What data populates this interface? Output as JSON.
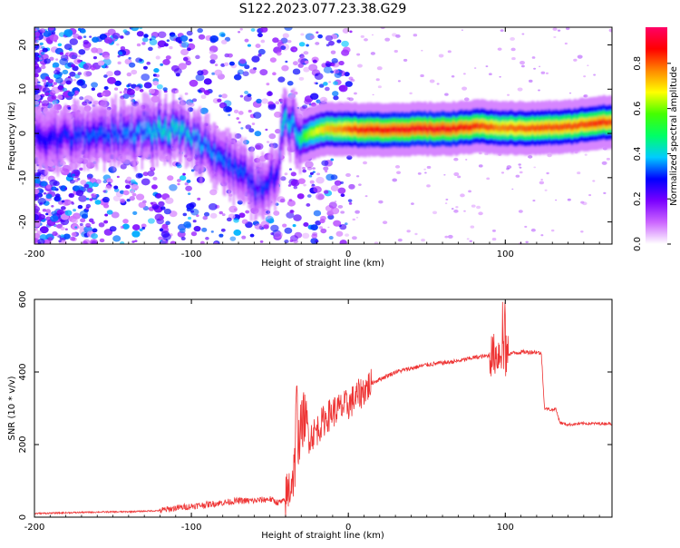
{
  "title": "S122.2023.077.23.38.G29",
  "chart_data": [
    {
      "type": "heatmap",
      "title": "S122.2023.077.23.38.G29",
      "xlabel": "Height of straight line (km)",
      "ylabel": "Frequency (Hz)",
      "xlim": [
        -200,
        168
      ],
      "ylim": [
        -25,
        24
      ],
      "x_ticks": [
        -200,
        -100,
        0,
        100
      ],
      "y_ticks": [
        -20,
        -10,
        0,
        10,
        20
      ],
      "colorbar": {
        "label": "Normalized spectral amplitude",
        "range": [
          0,
          0.96
        ],
        "ticks": [
          "0.0",
          "0.2",
          "0.4",
          "0.6",
          "0.8"
        ],
        "colors": [
          "#ffffff",
          "#cc66ff",
          "#7a00ff",
          "#0000ff",
          "#00ccff",
          "#00ff66",
          "#44ff00",
          "#ffff00",
          "#ff8800",
          "#ff0000",
          "#ff0066"
        ]
      },
      "ridge": {
        "x": [
          -200,
          -190,
          -180,
          -170,
          -160,
          -150,
          -140,
          -130,
          -120,
          -110,
          -100,
          -95,
          -90,
          -85,
          -80,
          -75,
          -70,
          -65,
          -60,
          -55,
          -50,
          -45,
          -42,
          -40,
          -38,
          -35,
          -32,
          -30,
          -28,
          -25,
          -20,
          -15,
          -10,
          -5,
          0,
          10,
          20,
          40,
          60,
          70,
          80,
          85,
          90,
          95,
          100,
          120,
          140,
          150,
          160,
          168
        ],
        "y": [
          -1,
          -1,
          -1,
          -0.5,
          -0.5,
          0,
          0,
          0.5,
          0.5,
          0.5,
          -0.5,
          -2,
          -3,
          -4,
          -6,
          -7,
          -9,
          -10,
          -12,
          -13,
          -11,
          -8,
          3,
          4,
          3,
          2,
          0,
          -1,
          -0.5,
          0,
          0.5,
          1,
          1,
          1,
          1,
          0.8,
          0.8,
          1,
          1,
          1.2,
          1.5,
          1.6,
          1.5,
          1.2,
          1.2,
          1.2,
          1.5,
          2,
          2.5,
          2.5
        ],
        "amplitude": [
          0.3,
          0.3,
          0.32,
          0.35,
          0.35,
          0.36,
          0.38,
          0.4,
          0.45,
          0.45,
          0.42,
          0.4,
          0.38,
          0.38,
          0.36,
          0.35,
          0.35,
          0.34,
          0.34,
          0.34,
          0.32,
          0.3,
          0.45,
          0.45,
          0.42,
          0.4,
          0.45,
          0.55,
          0.6,
          0.65,
          0.7,
          0.75,
          0.78,
          0.8,
          0.85,
          0.9,
          0.9,
          0.92,
          0.92,
          0.9,
          0.88,
          0.85,
          0.85,
          0.8,
          0.82,
          0.85,
          0.85,
          0.85,
          0.88,
          0.85
        ]
      }
    },
    {
      "type": "line",
      "xlabel": "Height of straight line (km)",
      "ylabel": "SNR (10 * v/v)",
      "xlim": [
        -200,
        168
      ],
      "ylim": [
        0,
        600
      ],
      "x_ticks": [
        -200,
        -100,
        0,
        100
      ],
      "y_ticks": [
        0,
        200,
        400,
        600
      ],
      "color": "#ee3333",
      "x": [
        -200,
        -180,
        -160,
        -140,
        -120,
        -110,
        -100,
        -90,
        -80,
        -70,
        -60,
        -50,
        -45,
        -40,
        -35,
        -32,
        -30,
        -28,
        -25,
        -20,
        -15,
        -10,
        -5,
        0,
        5,
        10,
        15,
        20,
        25,
        30,
        40,
        50,
        60,
        70,
        80,
        90,
        95,
        98,
        100,
        102,
        110,
        120,
        123,
        125,
        130,
        132,
        135,
        140,
        150,
        160,
        168
      ],
      "y": [
        10,
        12,
        14,
        15,
        18,
        25,
        30,
        35,
        40,
        45,
        45,
        50,
        40,
        45,
        120,
        200,
        250,
        280,
        220,
        240,
        270,
        290,
        300,
        310,
        330,
        350,
        370,
        380,
        390,
        400,
        410,
        420,
        425,
        430,
        440,
        445,
        450,
        460,
        440,
        450,
        455,
        455,
        450,
        300,
        295,
        300,
        260,
        255,
        258,
        258,
        258
      ]
    }
  ]
}
